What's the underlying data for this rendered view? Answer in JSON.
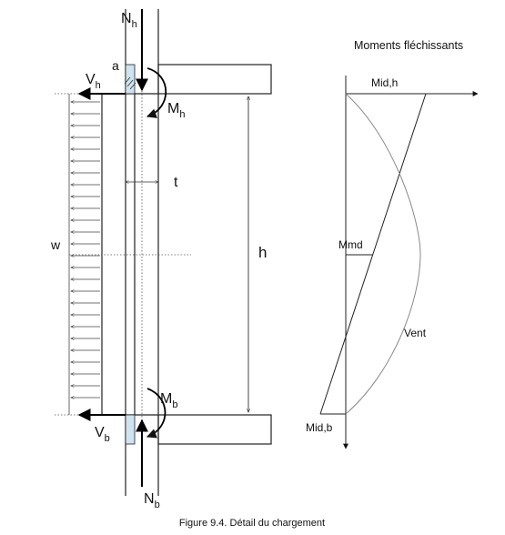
{
  "labels": {
    "nh": "N",
    "nh_sub": "h",
    "nb": "N",
    "nb_sub": "b",
    "vh": "V",
    "vh_sub": "h",
    "vb": "V",
    "vb_sub": "b",
    "mh": "M",
    "mh_sub": "h",
    "mb": "M",
    "mb_sub": "b",
    "a": "a",
    "t": "t",
    "w": "w",
    "h": "h"
  },
  "moment_diagram": {
    "title": "Moments fléchissants",
    "top_label": "Mid,h",
    "mid_label": "Mmd",
    "bottom_label": "Mid,b",
    "wind_label": "Vent"
  },
  "caption": "Figure 9.4. Détail du chargement",
  "colors": {
    "hatch_fill": "#cfe3f1",
    "line": "#222222"
  }
}
